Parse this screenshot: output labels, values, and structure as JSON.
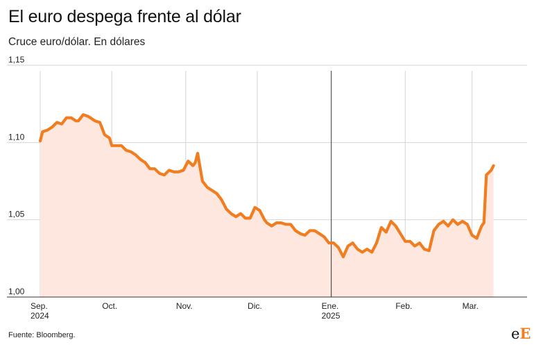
{
  "title": "El euro despega frente al dólar",
  "subtitle": "Cruce euro/dólar. En dólares",
  "source": "Fuente: Bloomberg.",
  "logo": {
    "letters": "eE"
  },
  "colors": {
    "line": "#f07d1f",
    "area": "#fde7de",
    "grid": "#d4d4d4",
    "axis": "#333333"
  },
  "chart_data": {
    "type": "area",
    "title": "El euro despega frente al dólar",
    "subtitle": "Cruce euro/dólar. En dólares",
    "ylim": [
      1.0,
      1.15
    ],
    "yticks": [
      1.0,
      1.05,
      1.1,
      1.15
    ],
    "ytick_labels": [
      "1,00",
      "1,05",
      "1,10",
      "1,15"
    ],
    "xlim": [
      "2024-09-01",
      "2025-03-16"
    ],
    "xticks": [
      {
        "date": "2024-09-01",
        "label": "Sep.",
        "sublabel": "2024"
      },
      {
        "date": "2024-10-01",
        "label": "Oct.",
        "sublabel": ""
      },
      {
        "date": "2024-11-01",
        "label": "Nov.",
        "sublabel": ""
      },
      {
        "date": "2024-12-01",
        "label": "Dic.",
        "sublabel": ""
      },
      {
        "date": "2025-01-01",
        "label": "Ene.",
        "sublabel": "2025"
      },
      {
        "date": "2025-02-01",
        "label": "Feb.",
        "sublabel": ""
      },
      {
        "date": "2025-03-01",
        "label": "Mar.",
        "sublabel": ""
      }
    ],
    "year_divider": "2025-01-01",
    "grid": true,
    "series": [
      {
        "x": [
          "2024-09-01",
          "2024-09-02",
          "2024-09-04",
          "2024-09-06",
          "2024-09-08",
          "2024-09-10",
          "2024-09-12",
          "2024-09-14",
          "2024-09-16",
          "2024-09-17",
          "2024-09-19",
          "2024-09-21",
          "2024-09-22",
          "2024-09-24",
          "2024-09-26",
          "2024-09-28",
          "2024-09-30",
          "2024-10-01",
          "2024-10-03",
          "2024-10-05",
          "2024-10-07",
          "2024-10-09",
          "2024-10-11",
          "2024-10-13",
          "2024-10-15",
          "2024-10-17",
          "2024-10-19",
          "2024-10-21",
          "2024-10-23",
          "2024-10-25",
          "2024-10-27",
          "2024-10-29",
          "2024-10-31",
          "2024-11-02",
          "2024-11-04",
          "2024-11-05",
          "2024-11-06",
          "2024-11-08",
          "2024-11-10",
          "2024-11-12",
          "2024-11-14",
          "2024-11-16",
          "2024-11-18",
          "2024-11-20",
          "2024-11-22",
          "2024-11-24",
          "2024-11-26",
          "2024-11-28",
          "2024-11-30",
          "2024-12-02",
          "2024-12-04",
          "2024-12-05",
          "2024-12-07",
          "2024-12-09",
          "2024-12-11",
          "2024-12-13",
          "2024-12-15",
          "2024-12-17",
          "2024-12-19",
          "2024-12-21",
          "2024-12-23",
          "2024-12-25",
          "2024-12-27",
          "2024-12-29",
          "2024-12-31",
          "2025-01-02",
          "2025-01-04",
          "2025-01-06",
          "2025-01-08",
          "2025-01-10",
          "2025-01-12",
          "2025-01-14",
          "2025-01-16",
          "2025-01-18",
          "2025-01-20",
          "2025-01-22",
          "2025-01-24",
          "2025-01-26",
          "2025-01-28",
          "2025-01-30",
          "2025-02-01",
          "2025-02-03",
          "2025-02-05",
          "2025-02-07",
          "2025-02-09",
          "2025-02-11",
          "2025-02-13",
          "2025-02-15",
          "2025-02-17",
          "2025-02-19",
          "2025-02-21",
          "2025-02-23",
          "2025-02-25",
          "2025-02-27",
          "2025-03-01",
          "2025-03-03",
          "2025-03-05",
          "2025-03-06",
          "2025-03-07",
          "2025-03-09",
          "2025-03-10"
        ],
        "y": [
          1.101,
          1.107,
          1.108,
          1.11,
          1.113,
          1.112,
          1.116,
          1.116,
          1.114,
          1.114,
          1.118,
          1.117,
          1.116,
          1.114,
          1.113,
          1.105,
          1.103,
          1.098,
          1.098,
          1.098,
          1.095,
          1.094,
          1.092,
          1.089,
          1.087,
          1.083,
          1.083,
          1.08,
          1.079,
          1.082,
          1.081,
          1.081,
          1.082,
          1.088,
          1.085,
          1.087,
          1.093,
          1.075,
          1.071,
          1.069,
          1.067,
          1.063,
          1.057,
          1.054,
          1.052,
          1.054,
          1.051,
          1.051,
          1.058,
          1.056,
          1.05,
          1.048,
          1.046,
          1.048,
          1.048,
          1.047,
          1.047,
          1.043,
          1.041,
          1.04,
          1.043,
          1.043,
          1.041,
          1.039,
          1.035,
          1.035,
          1.032,
          1.026,
          1.033,
          1.035,
          1.031,
          1.029,
          1.031,
          1.029,
          1.035,
          1.045,
          1.042,
          1.049,
          1.046,
          1.041,
          1.036,
          1.036,
          1.033,
          1.035,
          1.031,
          1.03,
          1.043,
          1.047,
          1.049,
          1.046,
          1.05,
          1.047,
          1.049,
          1.047,
          1.04,
          1.038,
          1.046,
          1.048,
          1.079,
          1.082,
          1.085
        ]
      }
    ]
  }
}
